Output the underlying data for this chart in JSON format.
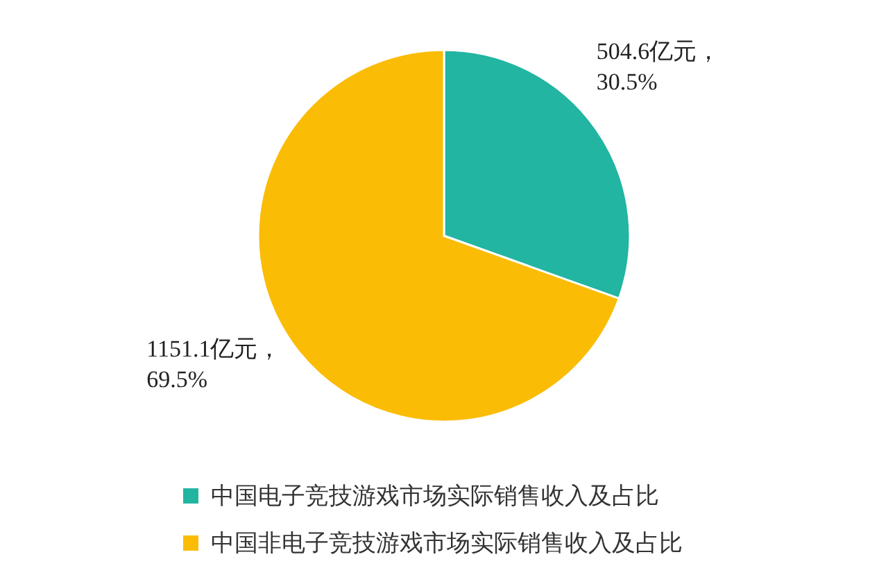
{
  "chart_data": {
    "type": "pie",
    "categories": [
      "中国电子竞技游戏市场实际销售收入及占比",
      "中国非电子竞技游戏市场实际销售收入及占比"
    ],
    "values": [
      504.6,
      1151.1
    ],
    "colors": [
      "#22b5a1",
      "#fbbc05"
    ],
    "value_labels": [
      "504.6亿元，30.5%",
      "1151.1亿元，69.5%"
    ],
    "legend": "bottom"
  }
}
